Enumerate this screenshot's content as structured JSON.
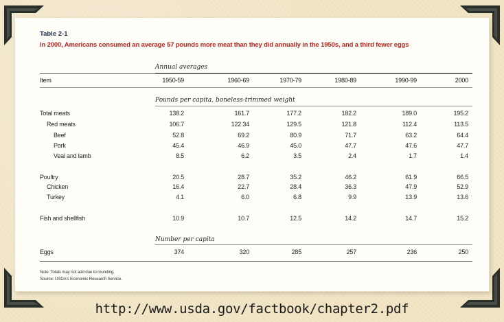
{
  "table": {
    "label": "Table 2-1",
    "caption": "In 2000, Americans consumed an average 57 pounds more meat than they did annually in the 1950s, and a third fewer eggs",
    "annual_averages_label": "Annual averages",
    "item_header": "Item",
    "columns": [
      "1950-59",
      "1960-69",
      "1970-79",
      "1980-89",
      "1990-99",
      "2000"
    ],
    "pounds_label": "Pounds per capita, boneless-trimmed weight",
    "number_label": "Number per capita",
    "rows": [
      {
        "item": "Total meats",
        "values": [
          "138.2",
          "161.7",
          "177.2",
          "182.2",
          "189.0",
          "195.2"
        ]
      },
      {
        "item": "Red meats",
        "values": [
          "106.7",
          "122.34",
          "129.5",
          "121.8",
          "112.4",
          "113.5"
        ]
      },
      {
        "item": "Beef",
        "values": [
          "52.8",
          "69.2",
          "80.9",
          "71.7",
          "63.2",
          "64.4"
        ]
      },
      {
        "item": "Pork",
        "values": [
          "45.4",
          "46.9",
          "45.0",
          "47.7",
          "47.6",
          "47.7"
        ]
      },
      {
        "item": "Veal and lamb",
        "values": [
          "8.5",
          "6.2",
          "3.5",
          "2.4",
          "1.7",
          "1.4"
        ]
      },
      {
        "item": "Poultry",
        "values": [
          "20.5",
          "28.7",
          "35.2",
          "46.2",
          "61.9",
          "66.5"
        ]
      },
      {
        "item": "Chicken",
        "values": [
          "16.4",
          "22.7",
          "28.4",
          "36.3",
          "47.9",
          "52.9"
        ]
      },
      {
        "item": "Turkey",
        "values": [
          "4.1",
          "6.0",
          "6.8",
          "9.9",
          "13.9",
          "13.6"
        ]
      },
      {
        "item": "Fish and shellfish",
        "values": [
          "10.9",
          "10.7",
          "12.5",
          "14.2",
          "14.7",
          "15.2"
        ]
      },
      {
        "item": "Eggs",
        "values": [
          "374",
          "320",
          "285",
          "257",
          "236",
          "250"
        ]
      }
    ],
    "note": "Note: Totals may not add due to rounding.",
    "source": "Source: USDA's Economic Research Service."
  },
  "url_text": "http://www.usda.gov/factbook/chapter2.pdf"
}
